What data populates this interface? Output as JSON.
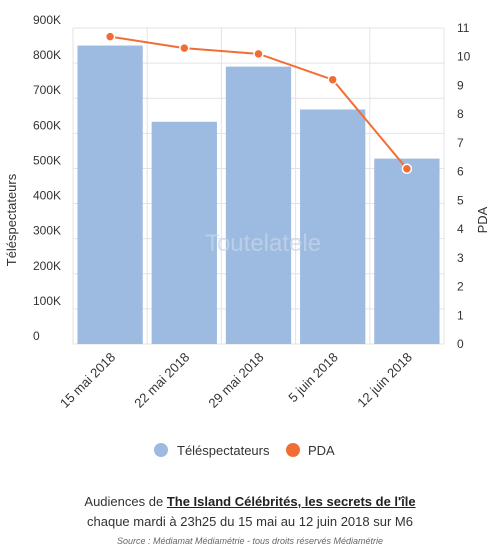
{
  "chart_data": {
    "type": "bar",
    "categories": [
      "15 mai 2018",
      "22 mai 2018",
      "29 mai 2018",
      "5 juin 2018",
      "12 juin 2018"
    ],
    "series": [
      {
        "name": "Téléspectateurs",
        "type": "bar",
        "axis": "left",
        "color": "#9dbbe1",
        "values": [
          850000,
          633000,
          790000,
          668000,
          528000
        ]
      },
      {
        "name": "PDA",
        "type": "line",
        "axis": "right",
        "color": "#f26d35",
        "values": [
          10.7,
          10.3,
          10.1,
          9.2,
          6.1
        ]
      }
    ],
    "ylabel": "Téléspectateurs",
    "y2label": "PDA",
    "ylim": [
      0,
      900000
    ],
    "y2lim": [
      0,
      11
    ],
    "yticks": [
      "0",
      "100K",
      "200K",
      "300K",
      "400K",
      "500K",
      "600K",
      "700K",
      "800K",
      "900K"
    ],
    "y2ticks": [
      "0",
      "1",
      "2",
      "3",
      "4",
      "5",
      "6",
      "7",
      "8",
      "9",
      "10",
      "11"
    ],
    "grid": true,
    "legend": "bottom-center"
  },
  "watermark": "Toutelatele",
  "caption": {
    "prefix": "Audiences de ",
    "show_title": "The Island Célébrités, les secrets de l'île",
    "line2": "chaque mardi à 23h25 du 15 mai au 12 juin 2018 sur M6",
    "source": "Source : Médiamat Médiamétrie - tous droits réservés Médiamétrie"
  }
}
